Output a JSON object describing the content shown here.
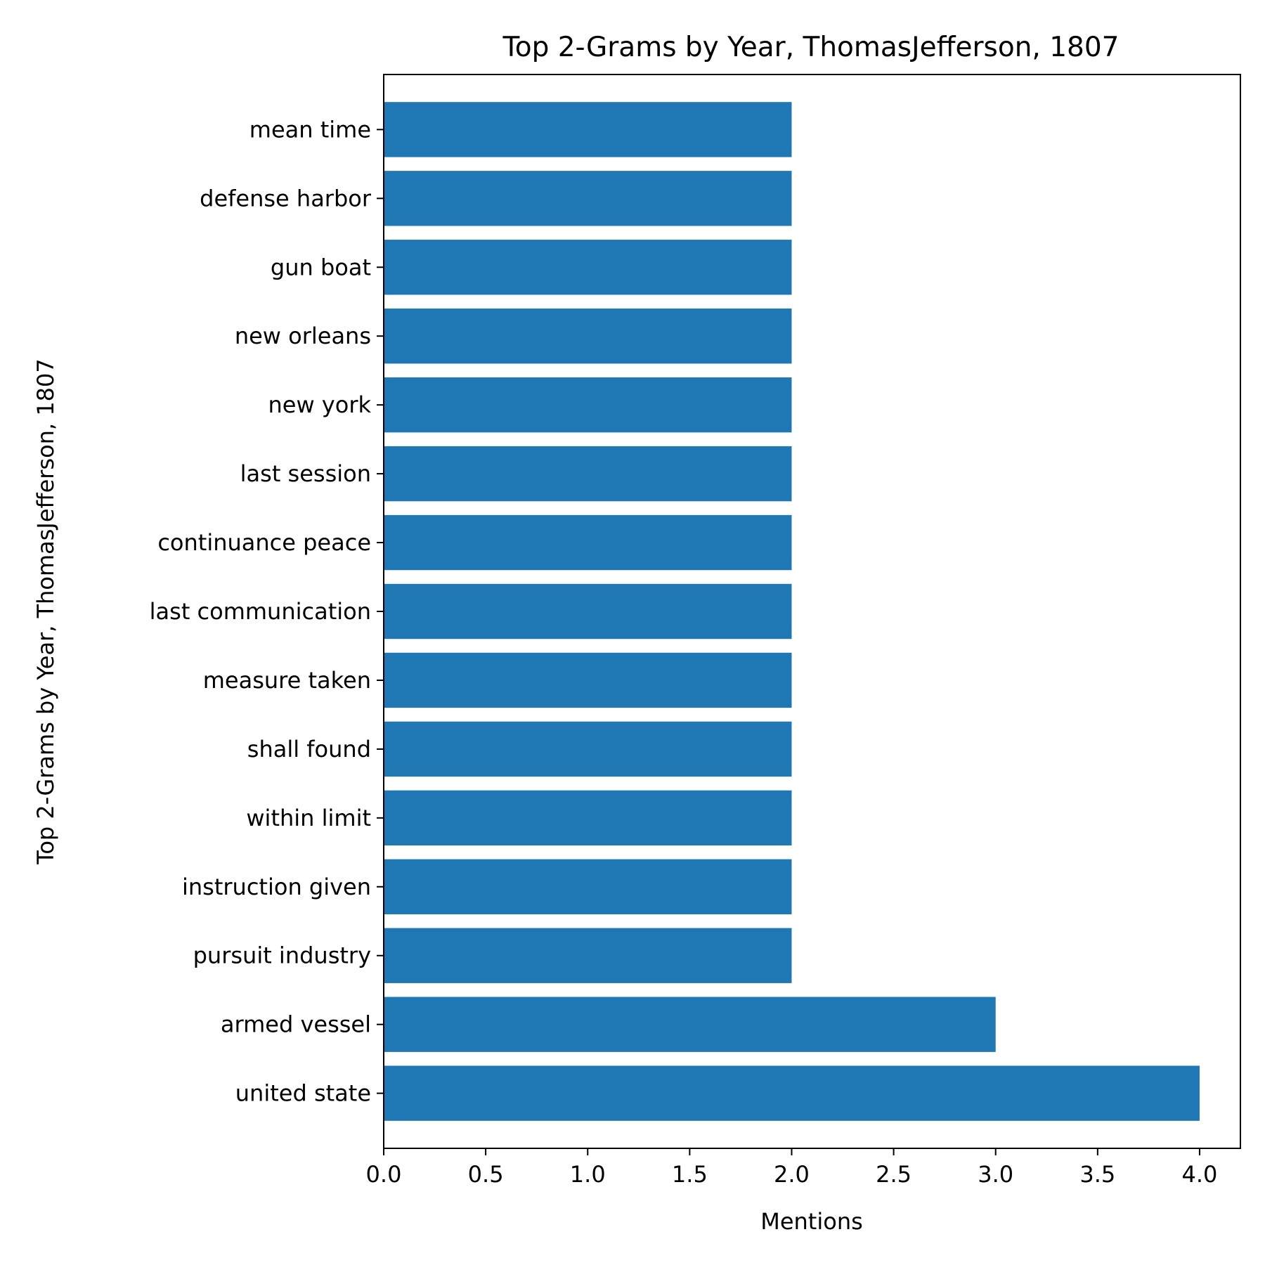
{
  "chart_data": {
    "type": "bar",
    "orientation": "horizontal",
    "title": "Top 2-Grams by Year, ThomasJefferson, 1807",
    "xlabel": "Mentions",
    "ylabel": "Top 2-Grams by Year, ThomasJefferson, 1807",
    "categories": [
      "united state",
      "armed vessel",
      "pursuit industry",
      "instruction given",
      "within limit",
      "shall found",
      "measure taken",
      "last communication",
      "continuance peace",
      "last session",
      "new york",
      "new orleans",
      "gun boat",
      "defense harbor",
      "mean time"
    ],
    "values": [
      4,
      3,
      2,
      2,
      2,
      2,
      2,
      2,
      2,
      2,
      2,
      2,
      2,
      2,
      2
    ],
    "xlim": [
      0,
      4.2
    ],
    "xticks": [
      "0.0",
      "0.5",
      "1.0",
      "1.5",
      "2.0",
      "2.5",
      "3.0",
      "3.5",
      "4.0"
    ],
    "bar_color": "#1f77b4",
    "grid": false,
    "legend": "none"
  }
}
